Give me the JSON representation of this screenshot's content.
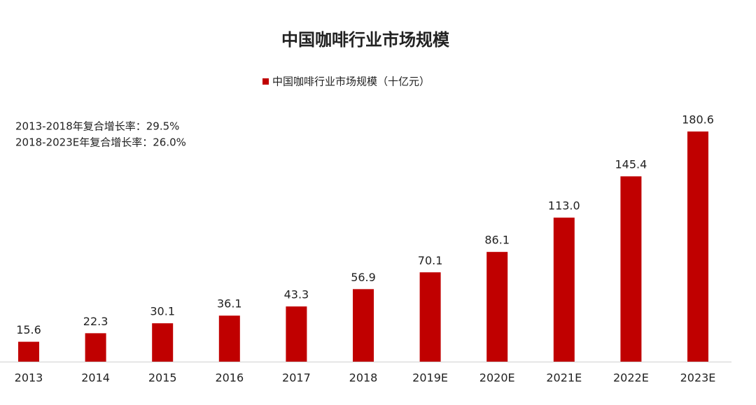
{
  "chart_data": {
    "type": "bar",
    "title": "中国咖啡行业市场规模",
    "annotations": [
      "2013-2018年复合增长率：29.5%",
      "2018-2023E年复合增长率：26.0%"
    ],
    "categories": [
      "2013",
      "2014",
      "2015",
      "2016",
      "2017",
      "2018",
      "2019E",
      "2020E",
      "2021E",
      "2022E",
      "2023E"
    ],
    "series": [
      {
        "name": "中国咖啡行业市场规模（十亿元）",
        "color": "#c00000",
        "values": [
          15.6,
          22.3,
          30.1,
          36.1,
          43.3,
          56.9,
          70.1,
          86.1,
          113,
          145.4,
          180.6
        ],
        "value_labels": [
          "15.6",
          "22.3",
          "30.1",
          "36.1",
          "43.3",
          "56.9",
          "70.1",
          "86.1",
          "113.0",
          "145.4",
          "180.6"
        ]
      }
    ]
  }
}
